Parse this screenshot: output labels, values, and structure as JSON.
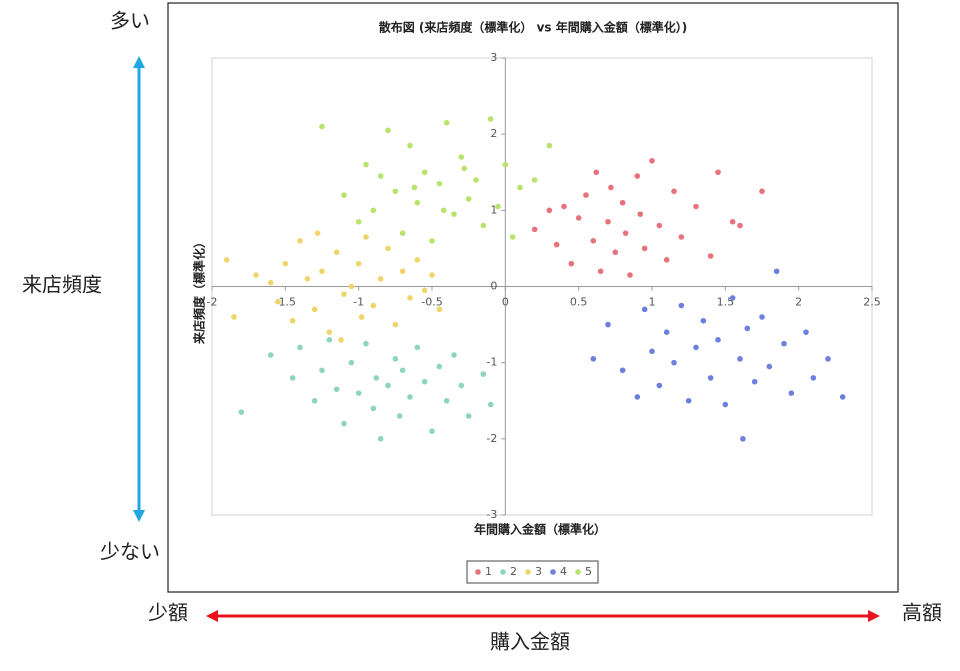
{
  "chart_data": {
    "type": "scatter",
    "title": "散布図 (来店頻度（標準化） vs 年間購入金額（標準化）)",
    "x_label": "年間購入金額（標準化）",
    "y_label": "来店頻度（標準化）",
    "annotations": {
      "top": "多い",
      "bottom": "少ない",
      "vertical": "来店頻度",
      "left": "少額",
      "right": "高額",
      "horizontal": "購入金額"
    },
    "xlim": [
      -2,
      2.5
    ],
    "xticks": [
      -2,
      -1.5,
      -1,
      -0.5,
      0,
      0.5,
      1,
      1.5,
      2,
      2.5
    ],
    "ylim": [
      -3,
      3
    ],
    "yticks": [
      -3,
      -2,
      -1,
      0,
      1,
      2,
      3
    ],
    "legend": "bottom",
    "series": [
      {
        "name": "1",
        "color": "#e8727c",
        "x": [
          0.2,
          0.3,
          0.35,
          0.4,
          0.45,
          0.5,
          0.55,
          0.6,
          0.62,
          0.65,
          0.7,
          0.72,
          0.75,
          0.8,
          0.82,
          0.85,
          0.9,
          0.92,
          0.95,
          1.0,
          1.05,
          1.1,
          1.15,
          1.2,
          1.3,
          1.4,
          1.45,
          1.55,
          1.6,
          1.75
        ],
        "values": [
          0.75,
          1.0,
          0.55,
          1.05,
          0.3,
          0.9,
          1.2,
          0.6,
          1.5,
          0.2,
          0.85,
          1.3,
          0.45,
          1.1,
          0.7,
          0.15,
          1.45,
          0.95,
          0.5,
          1.65,
          0.8,
          0.35,
          1.25,
          0.65,
          1.05,
          0.4,
          1.5,
          0.85,
          0.8,
          1.25
        ]
      },
      {
        "name": "2",
        "color": "#8fd4c1",
        "x": [
          -1.6,
          -1.45,
          -1.4,
          -1.3,
          -1.25,
          -1.2,
          -1.15,
          -1.1,
          -1.05,
          -1.0,
          -0.95,
          -0.9,
          -0.88,
          -0.85,
          -0.8,
          -0.75,
          -0.72,
          -0.7,
          -0.65,
          -0.6,
          -0.55,
          -0.5,
          -0.45,
          -0.4,
          -0.35,
          -0.3,
          -0.25,
          -0.15,
          -0.1,
          -1.8
        ],
        "values": [
          -0.9,
          -1.2,
          -0.8,
          -1.5,
          -1.1,
          -0.7,
          -1.35,
          -1.8,
          -1.0,
          -1.4,
          -0.75,
          -1.6,
          -1.2,
          -2.0,
          -1.3,
          -0.95,
          -1.7,
          -1.1,
          -1.45,
          -0.8,
          -1.25,
          -1.9,
          -1.05,
          -1.5,
          -0.9,
          -1.3,
          -1.7,
          -1.15,
          -1.55,
          -1.65
        ]
      },
      {
        "name": "3",
        "color": "#eed56c",
        "x": [
          -1.9,
          -1.85,
          -1.7,
          -1.6,
          -1.55,
          -1.5,
          -1.45,
          -1.4,
          -1.35,
          -1.3,
          -1.25,
          -1.2,
          -1.15,
          -1.1,
          -1.05,
          -1.0,
          -0.98,
          -0.95,
          -0.9,
          -0.85,
          -0.8,
          -0.75,
          -0.7,
          -0.65,
          -0.6,
          -0.55,
          -0.5,
          -0.45,
          -1.28,
          -1.12
        ],
        "values": [
          0.35,
          -0.4,
          0.15,
          0.05,
          -0.2,
          0.3,
          -0.45,
          0.6,
          0.1,
          -0.3,
          0.2,
          -0.6,
          0.45,
          -0.1,
          0.0,
          0.3,
          -0.4,
          0.65,
          -0.25,
          0.1,
          0.5,
          -0.5,
          0.2,
          -0.15,
          0.35,
          -0.05,
          0.15,
          -0.3,
          0.7,
          -0.7
        ]
      },
      {
        "name": "4",
        "color": "#6d80e0",
        "x": [
          0.6,
          0.7,
          0.8,
          0.9,
          0.95,
          1.0,
          1.05,
          1.1,
          1.15,
          1.2,
          1.25,
          1.3,
          1.35,
          1.4,
          1.45,
          1.5,
          1.55,
          1.6,
          1.62,
          1.65,
          1.7,
          1.75,
          1.8,
          1.85,
          1.9,
          1.95,
          2.05,
          2.1,
          2.2,
          2.3
        ],
        "values": [
          -0.95,
          -0.5,
          -1.1,
          -1.45,
          -0.3,
          -0.85,
          -1.3,
          -0.6,
          -1.0,
          -0.25,
          -1.5,
          -0.8,
          -0.45,
          -1.2,
          -0.7,
          -1.55,
          -0.15,
          -0.95,
          -2.0,
          -0.55,
          -1.25,
          -0.4,
          -1.05,
          0.2,
          -0.75,
          -1.4,
          -0.6,
          -1.2,
          -0.95,
          -1.45
        ]
      },
      {
        "name": "5",
        "color": "#b8e36c",
        "x": [
          -1.25,
          -1.1,
          -1.0,
          -0.95,
          -0.9,
          -0.85,
          -0.8,
          -0.75,
          -0.7,
          -0.65,
          -0.6,
          -0.55,
          -0.5,
          -0.45,
          -0.4,
          -0.35,
          -0.3,
          -0.25,
          -0.2,
          -0.15,
          -0.1,
          -0.05,
          0.0,
          0.05,
          0.1,
          0.2,
          0.3,
          -0.62,
          -0.42,
          -0.28
        ],
        "values": [
          2.1,
          1.2,
          0.85,
          1.6,
          1.0,
          1.45,
          2.05,
          1.25,
          0.7,
          1.85,
          1.1,
          1.5,
          0.6,
          1.35,
          2.15,
          0.95,
          1.7,
          1.15,
          1.4,
          0.8,
          2.2,
          1.05,
          1.6,
          0.65,
          1.3,
          1.4,
          1.85,
          1.3,
          1.0,
          1.55
        ]
      }
    ]
  }
}
